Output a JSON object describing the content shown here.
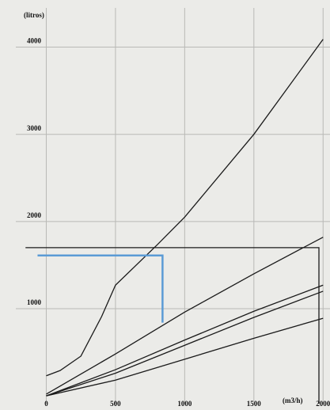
{
  "chart_data": {
    "type": "line",
    "ylabel": "(litros)",
    "xlabel": "(m3/h)",
    "xlim": [
      -220,
      2050
    ],
    "ylim": [
      -90,
      4450
    ],
    "xticks": [
      0,
      500,
      1000,
      1500,
      2000
    ],
    "yticks": [
      1000,
      2000,
      3000,
      4000
    ],
    "grid": true,
    "series": [
      {
        "color": "#1a1a1a",
        "x": [
          0,
          100,
          250,
          400,
          500,
          800,
          1000,
          1500,
          2000
        ],
        "values": [
          230,
          290,
          455,
          910,
          1270,
          1730,
          2050,
          3000,
          4090
        ]
      },
      {
        "color": "#1a1a1a",
        "x": [
          0,
          500,
          1000,
          1500,
          2000
        ],
        "values": [
          20,
          480,
          960,
          1400,
          1820
        ]
      },
      {
        "color": "#1a1a1a",
        "x": [
          0,
          500,
          1000,
          1500,
          2000
        ],
        "values": [
          0,
          300,
          640,
          970,
          1270
        ]
      },
      {
        "color": "#1a1a1a",
        "x": [
          0,
          500,
          1000,
          1500,
          2000
        ],
        "values": [
          0,
          260,
          580,
          900,
          1200
        ]
      },
      {
        "color": "#1a1a1a",
        "x": [
          0,
          500,
          1000,
          1500,
          2000
        ],
        "values": [
          0,
          180,
          420,
          660,
          890
        ]
      },
      {
        "color": "#1a1a1a",
        "x": [
          -150,
          1970,
          1970
        ],
        "values": [
          1700,
          1700,
          -90
        ]
      },
      {
        "color": "#5b9bd5",
        "x": [
          -63,
          840,
          840
        ],
        "values": [
          1610,
          1610,
          840
        ]
      }
    ]
  }
}
